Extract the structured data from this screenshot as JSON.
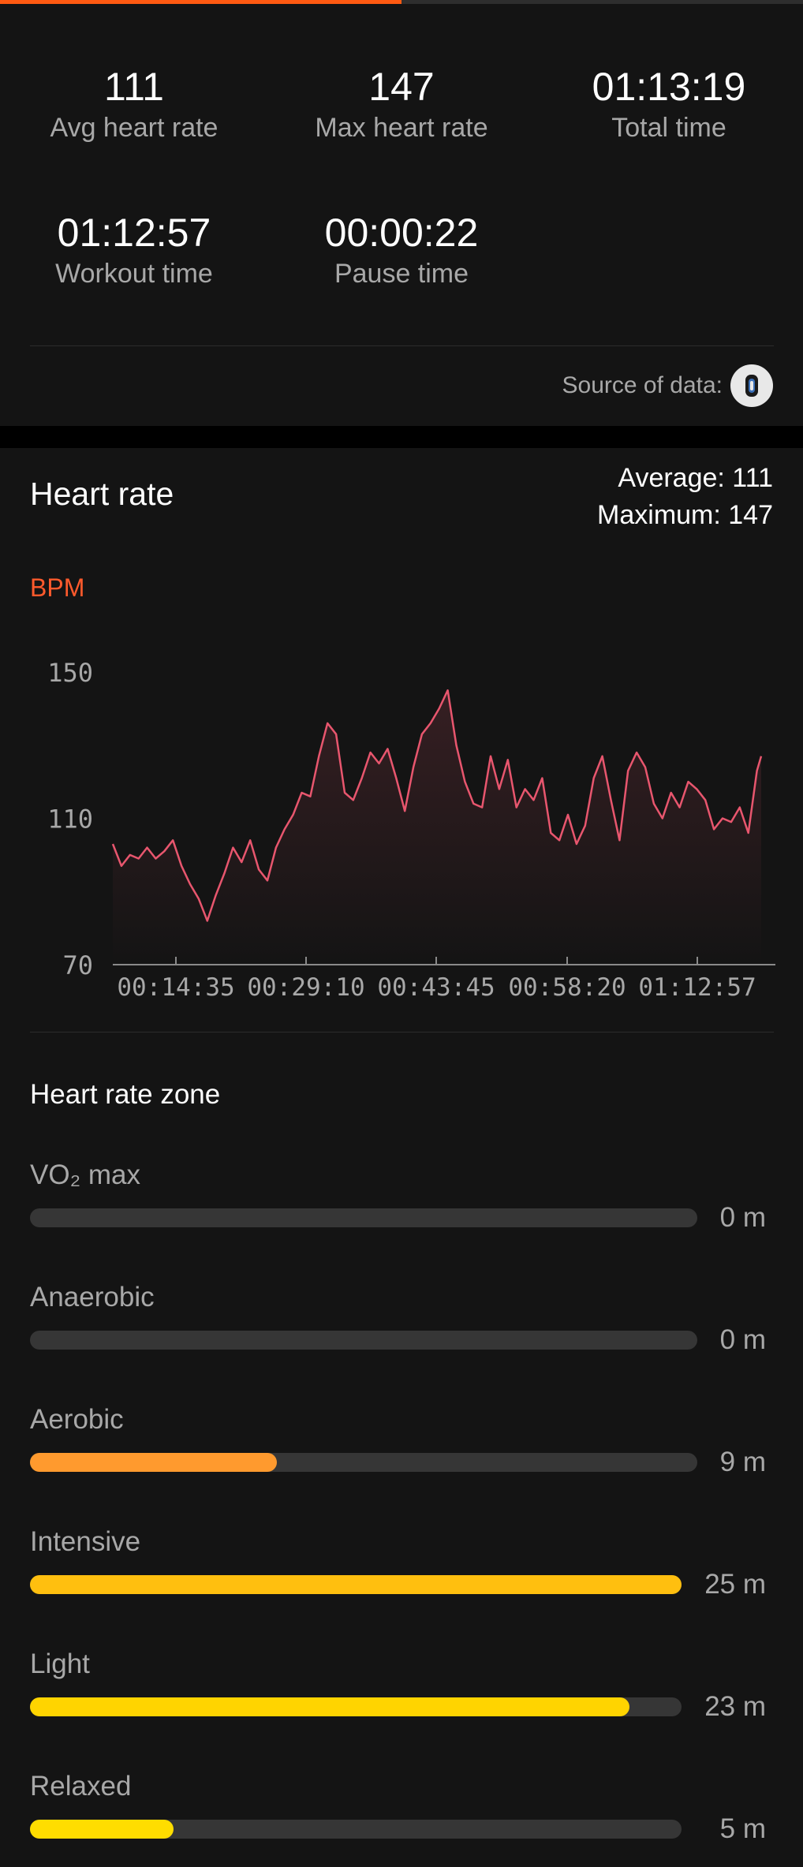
{
  "top_progress": {
    "fraction": 0.5,
    "color": "#ff5a12"
  },
  "summary": {
    "stats": [
      {
        "value": "111",
        "label": "Avg heart rate"
      },
      {
        "value": "147",
        "label": "Max heart rate"
      },
      {
        "value": "01:13:19",
        "label": "Total time"
      },
      {
        "value": "01:12:57",
        "label": "Workout time"
      },
      {
        "value": "00:00:22",
        "label": "Pause time"
      }
    ],
    "source_label": "Source of data:",
    "source_icon": "device-band-icon"
  },
  "heart_rate": {
    "title": "Heart rate",
    "average_text": "Average: 111",
    "maximum_text": "Maximum: 147",
    "unit_label": "BPM"
  },
  "chart_data": {
    "type": "area",
    "ylabel": "BPM",
    "ylim": [
      70,
      150
    ],
    "yticks": [
      "150",
      "110",
      "70"
    ],
    "xticks": [
      "00:14:35",
      "00:29:10",
      "00:43:45",
      "00:58:20",
      "01:12:57"
    ],
    "x_unit": "minutes",
    "x_range": [
      0,
      75.5
    ],
    "line_color": "#e8566e",
    "series": [
      {
        "x": [
          0,
          1,
          2,
          3,
          4,
          5,
          6,
          7,
          8,
          9,
          10,
          11,
          12,
          13,
          14,
          15,
          16,
          17,
          18,
          19,
          20,
          21,
          22,
          23,
          24,
          25,
          26,
          27,
          28,
          29,
          30,
          31,
          32,
          33,
          34,
          35,
          36,
          37,
          38,
          39,
          40,
          41,
          42,
          43,
          44,
          45,
          46,
          47,
          48,
          49,
          50,
          51,
          52,
          53,
          54,
          55,
          56,
          57,
          58,
          59,
          60,
          61,
          62,
          63,
          64,
          65,
          66,
          67,
          68,
          69,
          70,
          71,
          72,
          73,
          74,
          75,
          75.5
        ],
        "values": [
          103,
          97,
          100,
          99,
          102,
          99,
          101,
          104,
          97,
          92,
          88,
          82,
          89,
          95,
          102,
          98,
          104,
          96,
          93,
          102,
          107,
          111,
          117,
          116,
          127,
          136,
          133,
          117,
          115,
          121,
          128,
          125,
          129,
          121,
          112,
          124,
          133,
          136,
          140,
          145,
          130,
          120,
          114,
          113,
          127,
          118,
          126,
          113,
          118,
          115,
          121,
          106,
          104,
          111,
          103,
          108,
          121,
          127,
          115,
          104,
          123,
          128,
          124,
          114,
          110,
          117,
          113,
          120,
          118,
          115,
          107,
          110,
          109,
          113,
          106,
          123,
          127
        ]
      }
    ]
  },
  "zones": {
    "title": "Heart rate zone",
    "items": [
      {
        "name": "VO₂ max",
        "value": "0 m",
        "fraction": 0.0,
        "color": "#f5a623"
      },
      {
        "name": "Anaerobic",
        "value": "0 m",
        "fraction": 0.0,
        "color": "#f5a623"
      },
      {
        "name": "Aerobic",
        "value": "9 m",
        "fraction": 0.37,
        "color": "#ff9a2e"
      },
      {
        "name": "Intensive",
        "value": "25 m",
        "fraction": 1.0,
        "color": "#ffbf0f"
      },
      {
        "name": "Light",
        "value": "23 m",
        "fraction": 0.92,
        "color": "#ffd400"
      },
      {
        "name": "Relaxed",
        "value": "5 m",
        "fraction": 0.22,
        "color": "#ffdd00"
      }
    ]
  }
}
